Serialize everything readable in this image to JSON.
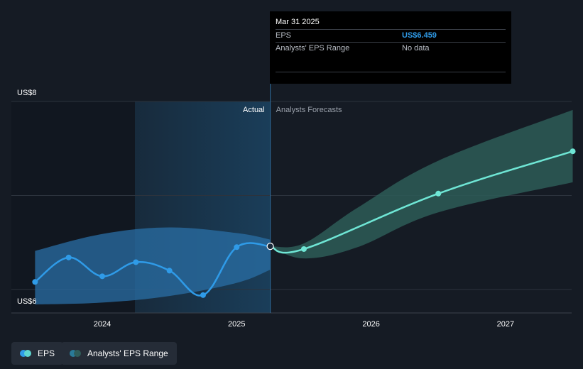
{
  "tooltip": {
    "date": "Mar 31 2025",
    "eps_label": "EPS",
    "eps_value": "US$6.459",
    "range_label": "Analysts' EPS Range",
    "range_value": "No data"
  },
  "section_labels": {
    "actual": "Actual",
    "forecast": "Analysts Forecasts"
  },
  "legend": {
    "eps": {
      "label": "EPS",
      "colors": [
        "#2f9be8",
        "#5ed6d0"
      ]
    },
    "range": {
      "label": "Analysts' EPS Range",
      "colors": [
        "#2a7a98",
        "#2f5c59"
      ]
    }
  },
  "colors": {
    "background": "#151b24",
    "eps_actual": "#2f9be8",
    "eps_forecast": "#6fe6d5",
    "range_actual": "#2a6fa6",
    "range_forecast": "#2d5c57"
  },
  "chart_data": {
    "type": "line",
    "x_ticks": [
      "2024",
      "2025",
      "2026",
      "2027"
    ],
    "y_ticks": [
      "US$6",
      "US$8"
    ],
    "ylim": [
      5.75,
      8.0
    ],
    "divider_date": 2025.25,
    "series": [
      {
        "name": "EPS",
        "segment": "actual",
        "points": [
          {
            "x": 2023.5,
            "y": 6.08
          },
          {
            "x": 2023.75,
            "y": 6.34
          },
          {
            "x": 2024.0,
            "y": 6.14
          },
          {
            "x": 2024.25,
            "y": 6.29
          },
          {
            "x": 2024.5,
            "y": 6.2
          },
          {
            "x": 2024.75,
            "y": 5.94
          },
          {
            "x": 2025.0,
            "y": 6.45
          },
          {
            "x": 2025.25,
            "y": 6.459
          }
        ]
      },
      {
        "name": "EPS",
        "segment": "forecast",
        "points": [
          {
            "x": 2025.25,
            "y": 6.459
          },
          {
            "x": 2025.5,
            "y": 6.43
          },
          {
            "x": 2026.5,
            "y": 7.02
          },
          {
            "x": 2027.5,
            "y": 7.47
          }
        ]
      }
    ],
    "ranges": [
      {
        "name": "Analysts' EPS Range",
        "segment": "actual",
        "points": [
          {
            "x": 2023.5,
            "low": 5.84,
            "high": 6.41
          },
          {
            "x": 2024.0,
            "low": 5.86,
            "high": 6.59
          },
          {
            "x": 2024.5,
            "low": 5.93,
            "high": 6.66
          },
          {
            "x": 2025.0,
            "low": 6.07,
            "high": 6.6
          },
          {
            "x": 2025.25,
            "low": 6.21,
            "high": 6.53
          }
        ]
      },
      {
        "name": "Analysts' EPS Range",
        "segment": "forecast",
        "points": [
          {
            "x": 2025.25,
            "low": 6.459,
            "high": 6.459
          },
          {
            "x": 2025.5,
            "low": 6.33,
            "high": 6.49
          },
          {
            "x": 2025.9,
            "low": 6.45,
            "high": 6.87
          },
          {
            "x": 2026.5,
            "low": 6.82,
            "high": 7.37
          },
          {
            "x": 2027.5,
            "low": 7.14,
            "high": 7.91
          }
        ]
      }
    ]
  }
}
